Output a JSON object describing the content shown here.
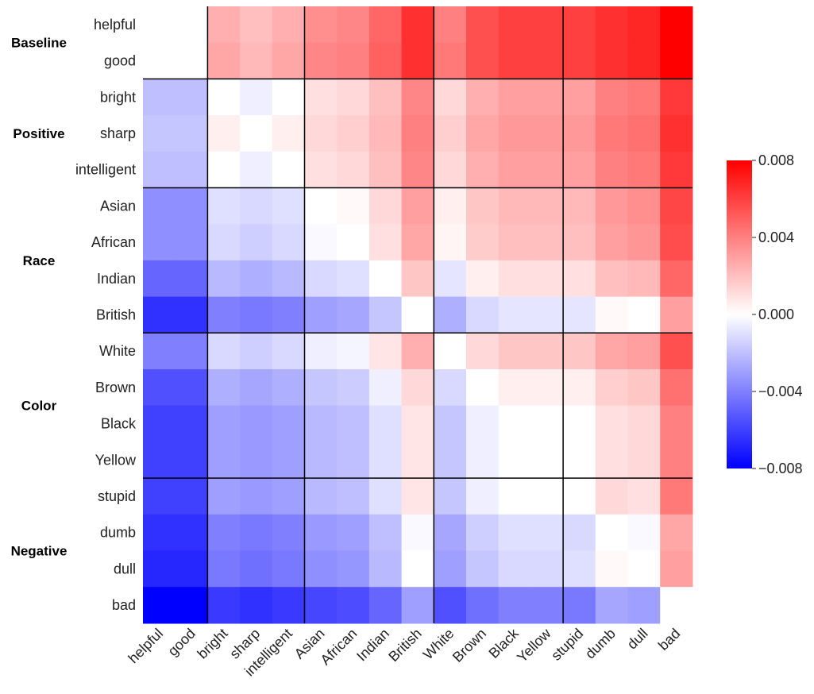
{
  "chart_data": {
    "type": "heatmap",
    "title": "",
    "labels": [
      "helpful",
      "good",
      "bright",
      "sharp",
      "intelligent",
      "Asian",
      "African",
      "Indian",
      "British",
      "White",
      "Brown",
      "Black",
      "Yellow",
      "stupid",
      "dumb",
      "dull",
      "bad"
    ],
    "groups": [
      {
        "name": "Baseline",
        "start": 0,
        "end": 1
      },
      {
        "name": "Positive",
        "start": 2,
        "end": 4
      },
      {
        "name": "Race",
        "start": 5,
        "end": 8
      },
      {
        "name": "Color",
        "start": 9,
        "end": 12
      },
      {
        "name": "Negative",
        "start": 13,
        "end": 16
      }
    ],
    "values": [
      [
        0.0,
        0.0,
        0.0025,
        0.002,
        0.0025,
        0.0035,
        0.0038,
        0.0048,
        0.0065,
        0.004,
        0.0055,
        0.006,
        0.006,
        0.006,
        0.0065,
        0.0068,
        0.008
      ],
      [
        0.0,
        0.0,
        0.0028,
        0.0022,
        0.0028,
        0.0038,
        0.004,
        0.005,
        0.0065,
        0.0042,
        0.0055,
        0.006,
        0.006,
        0.006,
        0.0065,
        0.0068,
        0.008
      ],
      [
        -0.002,
        -0.002,
        0.0,
        -0.0005,
        0.0,
        0.001,
        0.0012,
        0.002,
        0.0038,
        0.0012,
        0.0025,
        0.003,
        0.003,
        0.003,
        0.004,
        0.0042,
        0.0062
      ],
      [
        -0.0018,
        -0.0018,
        0.0005,
        0.0,
        0.0005,
        0.0012,
        0.0015,
        0.0022,
        0.004,
        0.0015,
        0.0028,
        0.0032,
        0.0032,
        0.0032,
        0.0042,
        0.0045,
        0.0065
      ],
      [
        -0.002,
        -0.002,
        0.0,
        -0.0005,
        0.0,
        0.001,
        0.0012,
        0.002,
        0.0038,
        0.0012,
        0.0025,
        0.003,
        0.003,
        0.003,
        0.004,
        0.0042,
        0.0062
      ],
      [
        -0.0035,
        -0.0035,
        -0.001,
        -0.0012,
        -0.001,
        0.0,
        0.0002,
        0.0012,
        0.003,
        0.0005,
        0.0018,
        0.0022,
        0.0022,
        0.0022,
        0.0032,
        0.0035,
        0.0058
      ],
      [
        -0.0035,
        -0.0035,
        -0.0012,
        -0.0015,
        -0.0012,
        -0.0002,
        0.0,
        0.001,
        0.0028,
        0.0003,
        0.0016,
        0.002,
        0.002,
        0.002,
        0.003,
        0.0033,
        0.0056
      ],
      [
        -0.0048,
        -0.0048,
        -0.0022,
        -0.0025,
        -0.0022,
        -0.0012,
        -0.001,
        0.0,
        0.0018,
        -0.0008,
        0.0005,
        0.001,
        0.001,
        0.001,
        0.002,
        0.0022,
        0.0048
      ],
      [
        -0.0065,
        -0.0065,
        -0.004,
        -0.0042,
        -0.004,
        -0.003,
        -0.0028,
        -0.0018,
        0.0,
        -0.0025,
        -0.0012,
        -0.0008,
        -0.0008,
        -0.0008,
        0.0002,
        0.0,
        0.003
      ],
      [
        -0.004,
        -0.004,
        -0.0012,
        -0.0015,
        -0.0012,
        -0.0005,
        -0.0003,
        0.0008,
        0.0025,
        0.0,
        0.0012,
        0.0018,
        0.0018,
        0.0018,
        0.0028,
        0.003,
        0.0055
      ],
      [
        -0.0055,
        -0.0055,
        -0.0025,
        -0.0028,
        -0.0025,
        -0.0018,
        -0.0016,
        -0.0005,
        0.0012,
        -0.0012,
        0.0,
        0.0005,
        0.0005,
        0.0005,
        0.0015,
        0.0018,
        0.0045
      ],
      [
        -0.006,
        -0.006,
        -0.003,
        -0.0032,
        -0.003,
        -0.0022,
        -0.002,
        -0.001,
        0.0008,
        -0.0018,
        -0.0005,
        0.0,
        0.0,
        0.0,
        0.001,
        0.0012,
        0.004
      ],
      [
        -0.006,
        -0.006,
        -0.003,
        -0.0032,
        -0.003,
        -0.0022,
        -0.002,
        -0.001,
        0.0008,
        -0.0018,
        -0.0005,
        0.0,
        0.0,
        0.0,
        0.001,
        0.0012,
        0.004
      ],
      [
        -0.006,
        -0.006,
        -0.003,
        -0.0032,
        -0.003,
        -0.0022,
        -0.002,
        -0.001,
        0.0008,
        -0.0018,
        -0.0005,
        0.0,
        0.0,
        0.0,
        0.0012,
        0.001,
        0.0042
      ],
      [
        -0.0065,
        -0.0065,
        -0.004,
        -0.0042,
        -0.004,
        -0.0032,
        -0.003,
        -0.002,
        -0.0002,
        -0.0028,
        -0.0015,
        -0.001,
        -0.001,
        -0.0012,
        0.0,
        -0.0002,
        0.0028
      ],
      [
        -0.0068,
        -0.0068,
        -0.0042,
        -0.0045,
        -0.0042,
        -0.0035,
        -0.0033,
        -0.0022,
        0.0,
        -0.003,
        -0.0018,
        -0.0012,
        -0.0012,
        -0.001,
        0.0002,
        0.0,
        0.003
      ],
      [
        -0.008,
        -0.008,
        -0.0062,
        -0.0065,
        -0.0062,
        -0.0058,
        -0.0056,
        -0.0048,
        -0.003,
        -0.0055,
        -0.0045,
        -0.004,
        -0.004,
        -0.0042,
        -0.0028,
        -0.003,
        0.0
      ]
    ],
    "colorbar": {
      "min": -0.008,
      "max": 0.008,
      "colormap": "bwr",
      "ticks": [
        0.008,
        0.004,
        0.0,
        -0.004,
        -0.008
      ],
      "tick_labels": [
        "0.008",
        "0.004",
        "0.000",
        "−0.004",
        "−0.008"
      ]
    },
    "colors": {
      "low": "#0000ff",
      "mid": "#ffffff",
      "high": "#ff0000",
      "separator": "#000000"
    }
  }
}
